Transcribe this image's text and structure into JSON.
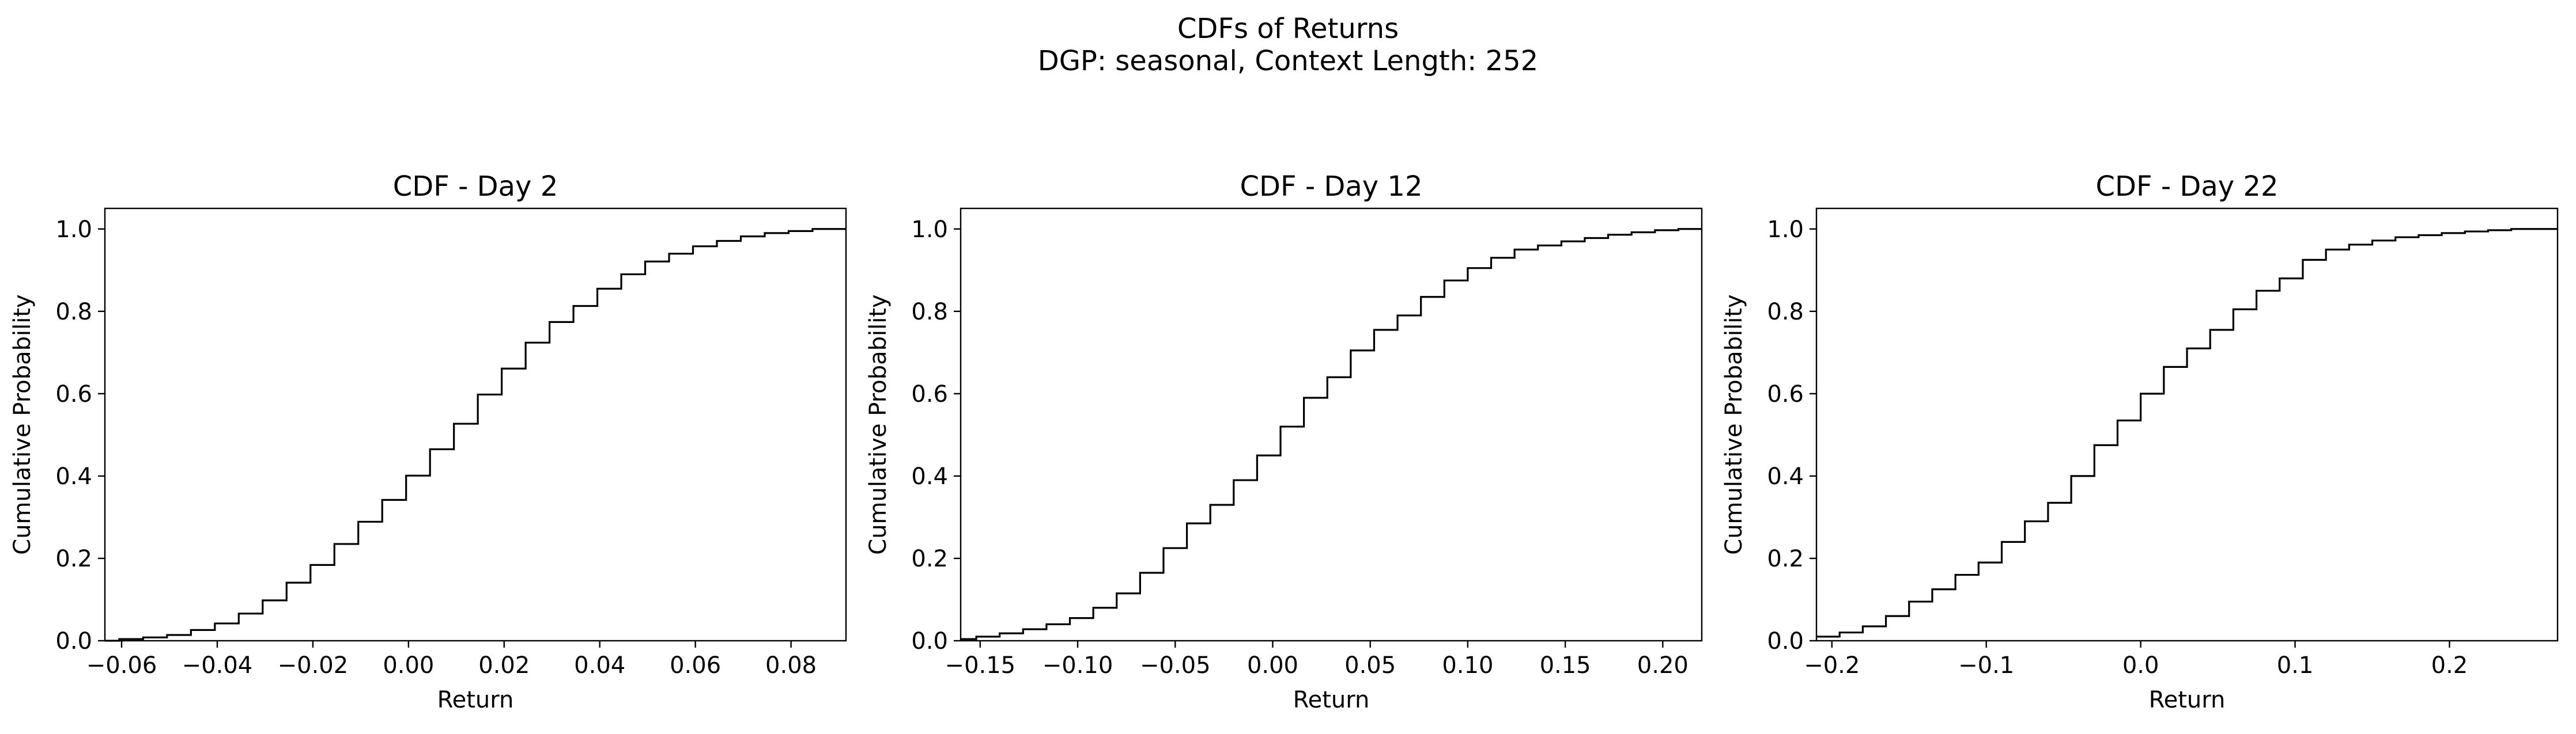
{
  "figure": {
    "title": "CDFs of Returns",
    "subtitle": "DGP: seasonal, Context Length: 252"
  },
  "chart_data": [
    {
      "type": "line",
      "step": true,
      "title": "CDF - Day 2",
      "xlabel": "Return",
      "ylabel": "Cumulative Probability",
      "xlim": [
        -0.0635,
        0.0915
      ],
      "ylim": [
        0.0,
        1.05
      ],
      "xticks": [
        -0.06,
        -0.04,
        -0.02,
        0.0,
        0.02,
        0.04,
        0.06,
        0.08
      ],
      "xtick_labels": [
        "−0.06",
        "−0.04",
        "−0.02",
        "0.00",
        "0.02",
        "0.04",
        "0.06",
        "0.08"
      ],
      "yticks": [
        0.0,
        0.2,
        0.4,
        0.6,
        0.8,
        1.0
      ],
      "ytick_labels": [
        "0.0",
        "0.2",
        "0.4",
        "0.6",
        "0.8",
        "1.0"
      ],
      "grid": false,
      "color": "#000000",
      "series": [
        {
          "x": [
            -0.0635,
            -0.0605,
            -0.0555,
            -0.0505,
            -0.0455,
            -0.0405,
            -0.0355,
            -0.0305,
            -0.0255,
            -0.0205,
            -0.0155,
            -0.0105,
            -0.0055,
            -0.0005,
            0.0045,
            0.0095,
            0.0145,
            0.0195,
            0.0245,
            0.0295,
            0.0345,
            0.0395,
            0.0445,
            0.0495,
            0.0545,
            0.0595,
            0.0645,
            0.0695,
            0.0745,
            0.0795,
            0.0845,
            0.0915
          ],
          "y": [
            0.0,
            0.004,
            0.008,
            0.014,
            0.026,
            0.042,
            0.066,
            0.098,
            0.141,
            0.184,
            0.235,
            0.289,
            0.342,
            0.401,
            0.465,
            0.527,
            0.598,
            0.661,
            0.724,
            0.774,
            0.813,
            0.855,
            0.89,
            0.921,
            0.94,
            0.958,
            0.971,
            0.982,
            0.99,
            0.995,
            1.0,
            1.0
          ]
        }
      ]
    },
    {
      "type": "line",
      "step": true,
      "title": "CDF - Day 12",
      "xlabel": "Return",
      "ylabel": "Cumulative Probability",
      "xlim": [
        -0.16,
        0.22
      ],
      "ylim": [
        0.0,
        1.05
      ],
      "xticks": [
        -0.15,
        -0.1,
        -0.05,
        0.0,
        0.05,
        0.1,
        0.15,
        0.2
      ],
      "xtick_labels": [
        "−0.15",
        "−0.10",
        "−0.05",
        "0.00",
        "0.05",
        "0.10",
        "0.15",
        "0.20"
      ],
      "yticks": [
        0.0,
        0.2,
        0.4,
        0.6,
        0.8,
        1.0
      ],
      "ytick_labels": [
        "0.0",
        "0.2",
        "0.4",
        "0.6",
        "0.8",
        "1.0"
      ],
      "grid": false,
      "color": "#000000",
      "series": [
        {
          "x": [
            -0.16,
            -0.152,
            -0.14,
            -0.128,
            -0.116,
            -0.104,
            -0.092,
            -0.08,
            -0.068,
            -0.056,
            -0.044,
            -0.032,
            -0.02,
            -0.008,
            0.004,
            0.016,
            0.028,
            0.04,
            0.052,
            0.064,
            0.076,
            0.088,
            0.1,
            0.112,
            0.124,
            0.136,
            0.148,
            0.16,
            0.172,
            0.184,
            0.196,
            0.208,
            0.22
          ],
          "y": [
            0.004,
            0.01,
            0.018,
            0.028,
            0.04,
            0.055,
            0.08,
            0.115,
            0.165,
            0.225,
            0.285,
            0.33,
            0.39,
            0.45,
            0.52,
            0.59,
            0.64,
            0.705,
            0.755,
            0.79,
            0.835,
            0.875,
            0.905,
            0.93,
            0.95,
            0.96,
            0.97,
            0.978,
            0.986,
            0.992,
            0.997,
            1.0,
            1.0
          ]
        }
      ]
    },
    {
      "type": "line",
      "step": true,
      "title": "CDF - Day 22",
      "xlabel": "Return",
      "ylabel": "Cumulative Probability",
      "xlim": [
        -0.21,
        0.27
      ],
      "ylim": [
        0.0,
        1.05
      ],
      "xticks": [
        -0.2,
        -0.1,
        0.0,
        0.1,
        0.2
      ],
      "xtick_labels": [
        "−0.2",
        "−0.1",
        "0.0",
        "0.1",
        "0.2"
      ],
      "yticks": [
        0.0,
        0.2,
        0.4,
        0.6,
        0.8,
        1.0
      ],
      "ytick_labels": [
        "0.0",
        "0.2",
        "0.4",
        "0.6",
        "0.8",
        "1.0"
      ],
      "grid": false,
      "color": "#000000",
      "series": [
        {
          "x": [
            -0.21,
            -0.195,
            -0.18,
            -0.165,
            -0.15,
            -0.135,
            -0.12,
            -0.105,
            -0.09,
            -0.075,
            -0.06,
            -0.045,
            -0.03,
            -0.015,
            0.0,
            0.015,
            0.03,
            0.045,
            0.06,
            0.075,
            0.09,
            0.105,
            0.12,
            0.135,
            0.15,
            0.165,
            0.18,
            0.195,
            0.21,
            0.225,
            0.24,
            0.255,
            0.27
          ],
          "y": [
            0.01,
            0.02,
            0.035,
            0.06,
            0.095,
            0.125,
            0.16,
            0.19,
            0.24,
            0.29,
            0.335,
            0.4,
            0.475,
            0.535,
            0.6,
            0.665,
            0.71,
            0.755,
            0.805,
            0.85,
            0.88,
            0.925,
            0.95,
            0.962,
            0.972,
            0.98,
            0.985,
            0.99,
            0.994,
            0.997,
            1.0,
            1.0,
            1.0
          ]
        }
      ]
    }
  ]
}
